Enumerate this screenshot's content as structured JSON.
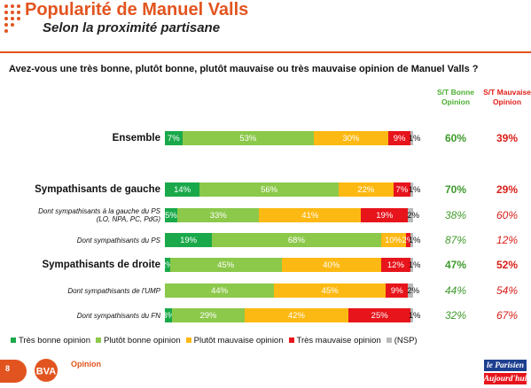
{
  "header": {
    "title": "Popularité de Manuel Valls",
    "subtitle": "Selon la proximité partisane"
  },
  "question": "Avez-vous une très bonne, plutôt bonne, plutôt mauvaise ou très mauvaise opinion de Manuel Valls ?",
  "columns": {
    "good": "S/T Bonne Opinion",
    "bad": "S/T Mauvaise Opinion"
  },
  "colors": {
    "tres_bonne": "#1aa94a",
    "plutot_bonne": "#8cc84a",
    "plutot_mauvaise": "#fdb913",
    "tres_mauvaise": "#e7141b",
    "nsp": "#b9b9b9",
    "accent": "#e2541f"
  },
  "chart_data": {
    "type": "bar",
    "orientation": "horizontal-stacked-100",
    "series_names": [
      "Très bonne opinion",
      "Plutôt bonne opinion",
      "Plutôt mauvaise opinion",
      "Très mauvaise opinion",
      "(NSP)"
    ],
    "rows": [
      {
        "label": "Ensemble",
        "style": "main",
        "values": [
          7,
          53,
          30,
          9,
          1
        ],
        "labels": [
          "7%",
          "53%",
          "30%",
          "9%",
          "1%"
        ],
        "st_good": "60%",
        "st_bad": "39%",
        "italic": false
      },
      {
        "label": "Sympathisants de gauche",
        "style": "main",
        "values": [
          14,
          56,
          22,
          7,
          1
        ],
        "labels": [
          "14%",
          "56%",
          "22%",
          "7%",
          "1%"
        ],
        "st_good": "70%",
        "st_bad": "29%",
        "italic": false
      },
      {
        "label": "Dont sympathisants à la gauche du PS (LO, NPA, PC, PdG)",
        "label_lines": [
          "Dont sympathisants à la gauche du PS",
          "(LO, NPA, PC, PdG)"
        ],
        "style": "sub",
        "values": [
          5,
          33,
          41,
          19,
          2
        ],
        "labels": [
          "5%",
          "33%",
          "41%",
          "19%",
          "2%"
        ],
        "st_good": "38%",
        "st_bad": "60%",
        "italic": true
      },
      {
        "label": "Dont sympathisants du PS",
        "style": "sub",
        "values": [
          19,
          68,
          10,
          2,
          1
        ],
        "labels": [
          "19%",
          "68%",
          "10%",
          "2%",
          "1%"
        ],
        "st_good": "87%",
        "st_bad": "12%",
        "italic": true
      },
      {
        "label": "Sympathisants de droite",
        "style": "main",
        "values": [
          2,
          45,
          40,
          12,
          1
        ],
        "labels": [
          "2%",
          "45%",
          "40%",
          "12%",
          "1%"
        ],
        "st_good": "47%",
        "st_bad": "52%",
        "italic": false
      },
      {
        "label": "Dont sympathisants de l'UMP",
        "style": "sub",
        "values": [
          0,
          44,
          45,
          9,
          2
        ],
        "labels": [
          "",
          "44%",
          "45%",
          "9%",
          "2%"
        ],
        "st_good": "44%",
        "st_bad": "54%",
        "italic": true
      },
      {
        "label": "Dont sympathisants du FN",
        "style": "sub",
        "values": [
          3,
          29,
          42,
          25,
          1
        ],
        "labels": [
          "3%",
          "29%",
          "42%",
          "25%",
          "1%"
        ],
        "st_good": "32%",
        "st_bad": "67%",
        "italic": true
      }
    ],
    "xlim": [
      0,
      100
    ]
  },
  "legend": [
    {
      "label": "Très bonne opinion",
      "color": "#1aa94a"
    },
    {
      "label": "Plutôt bonne opinion",
      "color": "#8cc84a"
    },
    {
      "label": "Plutôt mauvaise opinion",
      "color": "#fdb913"
    },
    {
      "label": "Très mauvaise opinion",
      "color": "#e7141b"
    },
    {
      "label": "(NSP)",
      "color": "#b9b9b9"
    }
  ],
  "footer": {
    "page_number": "8",
    "brand": "BVA",
    "brand_tag": "Opinion",
    "partner_1": "le Parisien",
    "partner_2": "Aujourd'hui"
  }
}
